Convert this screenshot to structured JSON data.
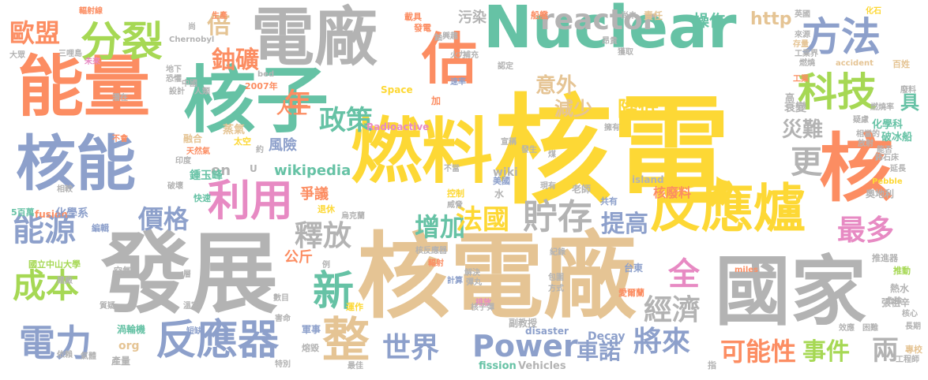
{
  "colors": {
    "background": "#ffffff",
    "yellow": "#fdd835",
    "green": "#66c2a5",
    "orange": "#fc8d62",
    "blue": "#8da0cb",
    "pink": "#e78ac3",
    "lime": "#a6d854",
    "tan": "#e5c494",
    "gray": "#b3b3b3"
  },
  "words": [
    {
      "text": "核電",
      "color": "yellow"
    },
    {
      "text": "核電廠",
      "color": "tan"
    },
    {
      "text": "Nuclear",
      "color": "green"
    },
    {
      "text": "發展",
      "color": "gray"
    },
    {
      "text": "燃料",
      "color": "yellow"
    },
    {
      "text": "核子",
      "color": "green"
    },
    {
      "text": "電廠",
      "color": "gray"
    },
    {
      "text": "能量",
      "color": "orange"
    },
    {
      "text": "核能",
      "color": "blue"
    },
    {
      "text": "國家",
      "color": "gray"
    },
    {
      "text": "反應爐",
      "color": "yellow"
    },
    {
      "text": "核",
      "color": "orange"
    },
    {
      "text": "估",
      "color": "orange"
    },
    {
      "text": "分裂",
      "color": "lime"
    },
    {
      "text": "方法",
      "color": "blue"
    },
    {
      "text": "科技",
      "color": "lime"
    },
    {
      "text": "利用",
      "color": "pink"
    },
    {
      "text": "反應器",
      "color": "blue"
    },
    {
      "text": "電力",
      "color": "blue"
    },
    {
      "text": "能源",
      "color": "blue"
    },
    {
      "text": "成本",
      "color": "lime"
    },
    {
      "text": "貯存",
      "color": "gray"
    },
    {
      "text": "整",
      "color": "tan"
    },
    {
      "text": "新",
      "color": "green"
    },
    {
      "text": "歐盟",
      "color": "orange"
    },
    {
      "text": "政策",
      "color": "green"
    },
    {
      "text": "釋放",
      "color": "gray"
    },
    {
      "text": "Power",
      "color": "blue"
    },
    {
      "text": "世界",
      "color": "blue"
    },
    {
      "text": "將來",
      "color": "blue"
    },
    {
      "text": "reactor",
      "color": "gray"
    },
    {
      "text": "最多",
      "color": "pink"
    },
    {
      "text": "提高",
      "color": "blue"
    },
    {
      "text": "增加",
      "color": "green"
    },
    {
      "text": "法國",
      "color": "yellow"
    },
    {
      "text": "全",
      "color": "pink"
    },
    {
      "text": "可能性",
      "color": "orange"
    },
    {
      "text": "事件",
      "color": "lime"
    },
    {
      "text": "兩",
      "color": "gray"
    },
    {
      "text": "年",
      "color": "orange"
    },
    {
      "text": "價格",
      "color": "blue"
    },
    {
      "text": "鈾礦",
      "color": "orange"
    },
    {
      "text": "倍",
      "color": "tan"
    },
    {
      "text": "意外",
      "color": "tan"
    },
    {
      "text": "減少",
      "color": "tan"
    },
    {
      "text": "降低",
      "color": "yellow"
    },
    {
      "text": "災難",
      "color": "gray"
    },
    {
      "text": "更",
      "color": "gray"
    },
    {
      "text": "經濟",
      "color": "gray"
    },
    {
      "text": "車諾",
      "color": "blue"
    },
    {
      "text": "操作",
      "color": "green"
    },
    {
      "text": "http",
      "color": "tan"
    },
    {
      "text": "具",
      "color": "green"
    },
    {
      "text": "核廢料",
      "color": "orange"
    },
    {
      "text": "人士",
      "color": "orange"
    },
    {
      "text": "風險",
      "color": "blue"
    },
    {
      "text": "wikipedia",
      "color": "green"
    },
    {
      "text": "en",
      "color": "gray"
    },
    {
      "text": "爭議",
      "color": "orange"
    },
    {
      "text": "公斤",
      "color": "orange"
    },
    {
      "text": "衰變",
      "color": "gray"
    },
    {
      "text": "化學科",
      "color": "green"
    },
    {
      "text": "破冰船",
      "color": "green"
    },
    {
      "text": "污染",
      "color": "gray"
    },
    {
      "text": "責任",
      "color": "tan"
    },
    {
      "text": "Space",
      "color": "yellow"
    },
    {
      "text": "Radioactive",
      "color": "pink"
    },
    {
      "text": "wiki",
      "color": "gray"
    },
    {
      "text": "Decay",
      "color": "blue"
    },
    {
      "text": "fission",
      "color": "green"
    },
    {
      "text": "Vehicles",
      "color": "gray"
    },
    {
      "text": "disaster",
      "color": "blue"
    },
    {
      "text": "org",
      "color": "tan"
    },
    {
      "text": "Chernobyl",
      "color": "gray"
    },
    {
      "text": "accident",
      "color": "tan"
    },
    {
      "text": "bed",
      "color": "gray"
    },
    {
      "text": "Pebble",
      "color": "yellow"
    },
    {
      "text": "island",
      "color": "gray"
    },
    {
      "text": "miles",
      "color": "orange"
    },
    {
      "text": "fusion",
      "color": "orange"
    },
    {
      "text": "U",
      "color": "gray"
    },
    {
      "text": "2007年",
      "color": "orange"
    },
    {
      "text": "國立中山大學",
      "color": "lime"
    },
    {
      "text": "化學系",
      "color": "blue"
    },
    {
      "text": "鍾玉峰",
      "color": "green"
    },
    {
      "text": "渦輪機",
      "color": "green"
    },
    {
      "text": "蒸氣",
      "color": "tan"
    },
    {
      "text": "融合",
      "color": "tan"
    },
    {
      "text": "天然氣",
      "color": "orange"
    },
    {
      "text": "太空",
      "color": "yellow"
    },
    {
      "text": "奧地利",
      "color": "gray"
    },
    {
      "text": "老師",
      "color": "gray"
    },
    {
      "text": "共有",
      "color": "blue"
    },
    {
      "text": "推進器",
      "color": "gray"
    },
    {
      "text": "推動",
      "color": "lime"
    },
    {
      "text": "熱水",
      "color": "gray"
    },
    {
      "text": "張祖辛",
      "color": "gray"
    },
    {
      "text": "副教授",
      "color": "gray"
    },
    {
      "text": "專校",
      "color": "tan"
    },
    {
      "text": "軍事",
      "color": "blue"
    },
    {
      "text": "台東",
      "color": "blue"
    },
    {
      "text": "愛爾蘭",
      "color": "orange"
    },
    {
      "text": "控制",
      "color": "yellow"
    },
    {
      "text": "運作",
      "color": "yellow"
    },
    {
      "text": "產量",
      "color": "gray"
    },
    {
      "text": "熔毀",
      "color": "gray"
    },
    {
      "text": "退休",
      "color": "yellow"
    },
    {
      "text": "水",
      "color": "gray"
    },
    {
      "text": "美國",
      "color": "blue"
    },
    {
      "text": "計算",
      "color": "blue"
    },
    {
      "text": "輻射",
      "color": "orange"
    },
    {
      "text": "快速",
      "color": "green"
    },
    {
      "text": "短缺",
      "color": "blue"
    },
    {
      "text": "空氣",
      "color": "gray"
    },
    {
      "text": "編輯",
      "color": "blue"
    },
    {
      "text": "5百萬",
      "color": "green"
    },
    {
      "text": "地下",
      "color": "gray"
    },
    {
      "text": "恐懼",
      "color": "gray"
    },
    {
      "text": "中國",
      "color": "gray"
    },
    {
      "text": "設計",
      "color": "gray"
    },
    {
      "text": "潛在",
      "color": "gray"
    },
    {
      "text": "不會",
      "color": "orange"
    },
    {
      "text": "破壞",
      "color": "gray"
    },
    {
      "text": "未來",
      "color": "pink"
    },
    {
      "text": "三哩島",
      "color": "gray"
    },
    {
      "text": "大眾",
      "color": "gray"
    },
    {
      "text": "輻射線",
      "color": "orange"
    },
    {
      "text": "生產",
      "color": "orange"
    },
    {
      "text": "發電",
      "color": "orange"
    },
    {
      "text": "載具",
      "color": "orange"
    },
    {
      "text": "船艦",
      "color": "orange"
    },
    {
      "text": "興趣",
      "color": "gray"
    },
    {
      "text": "昂貴",
      "color": "gray"
    },
    {
      "text": "獲取",
      "color": "gray"
    },
    {
      "text": "尚未",
      "color": "gray"
    },
    {
      "text": "英國",
      "color": "gray"
    },
    {
      "text": "化石",
      "color": "yellow"
    },
    {
      "text": "存量",
      "color": "tan"
    },
    {
      "text": "燃燒",
      "color": "gray"
    },
    {
      "text": "工業",
      "color": "orange"
    },
    {
      "text": "百姓",
      "color": "tan"
    },
    {
      "text": "速率",
      "color": "blue"
    },
    {
      "text": "人類",
      "color": "gray"
    },
    {
      "text": "宣稱",
      "color": "gray"
    },
    {
      "text": "發生",
      "color": "gray"
    },
    {
      "text": "擁有",
      "color": "gray"
    },
    {
      "text": "延長",
      "color": "gray"
    },
    {
      "text": "包圍",
      "color": "gray"
    },
    {
      "text": "方式",
      "color": "gray"
    },
    {
      "text": "彈丸",
      "color": "gray"
    },
    {
      "text": "排放",
      "color": "pink"
    },
    {
      "text": "解決",
      "color": "gray"
    },
    {
      "text": "核反應器",
      "color": "gray"
    },
    {
      "text": "紀錄",
      "color": "gray"
    },
    {
      "text": "長期",
      "color": "gray"
    },
    {
      "text": "核心",
      "color": "gray"
    },
    {
      "text": "困難",
      "color": "gray"
    },
    {
      "text": "效應",
      "color": "gray"
    },
    {
      "text": "危險",
      "color": "gray"
    },
    {
      "text": "工程師",
      "color": "gray"
    },
    {
      "text": "數目",
      "color": "gray"
    },
    {
      "text": "害命",
      "color": "gray"
    },
    {
      "text": "特別",
      "color": "gray"
    },
    {
      "text": "最佳",
      "color": "gray"
    },
    {
      "text": "指",
      "color": "gray"
    },
    {
      "text": "例",
      "color": "gray"
    },
    {
      "text": "層",
      "color": "gray"
    },
    {
      "text": "氣體",
      "color": "gray"
    },
    {
      "text": "依賴",
      "color": "gray"
    },
    {
      "text": "質疑",
      "color": "gray"
    },
    {
      "text": "溫室",
      "color": "gray"
    },
    {
      "text": "約",
      "color": "gray"
    },
    {
      "text": "印度",
      "color": "gray"
    },
    {
      "text": "相較",
      "color": "gray"
    },
    {
      "text": "建廠",
      "color": "gray"
    },
    {
      "text": "威脅",
      "color": "gray"
    },
    {
      "text": "現有",
      "color": "gray"
    },
    {
      "text": "烏克蘭",
      "color": "gray"
    },
    {
      "text": "不當",
      "color": "gray"
    },
    {
      "text": "認定",
      "color": "gray"
    },
    {
      "text": "燃燒率",
      "color": "gray"
    },
    {
      "text": "廢料",
      "color": "gray"
    },
    {
      "text": "能否",
      "color": "gray"
    },
    {
      "text": "疑慮",
      "color": "gray"
    },
    {
      "text": "相當的",
      "color": "gray"
    },
    {
      "text": "放射",
      "color": "gray"
    },
    {
      "text": "鈽石床",
      "color": "gray"
    },
    {
      "text": "鈾",
      "color": "gray"
    },
    {
      "text": "加",
      "color": "orange"
    },
    {
      "text": "高",
      "color": "gray"
    },
    {
      "text": "尚",
      "color": "gray"
    },
    {
      "text": "火力",
      "color": "gray"
    },
    {
      "text": "補充",
      "color": "gray"
    },
    {
      "text": "工業界",
      "color": "gray"
    },
    {
      "text": "來源",
      "color": "gray"
    },
    {
      "text": "煤",
      "color": "gray"
    },
    {
      "text": "核子彈",
      "color": "gray"
    }
  ]
}
